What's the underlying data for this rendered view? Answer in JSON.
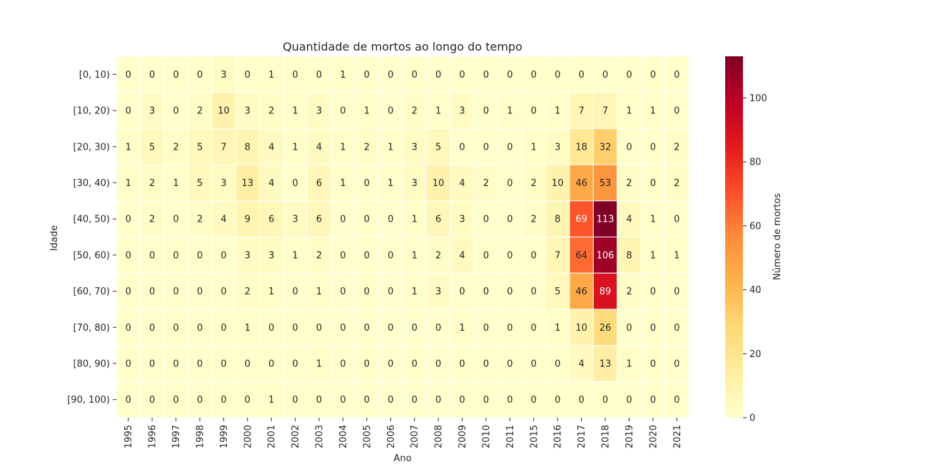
{
  "chart_data": {
    "type": "heatmap",
    "title": "Quantidade de mortos ao longo do tempo",
    "xlabel": "Ano",
    "ylabel": "Idade",
    "x": [
      "1995",
      "1996",
      "1997",
      "1998",
      "1999",
      "2000",
      "2001",
      "2002",
      "2003",
      "2004",
      "2005",
      "2006",
      "2007",
      "2008",
      "2009",
      "2010",
      "2011",
      "2015",
      "2016",
      "2017",
      "2018",
      "2019",
      "2020",
      "2021"
    ],
    "y": [
      "[0, 10)",
      "[10, 20)",
      "[20, 30)",
      "[30, 40)",
      "[40, 50)",
      "[50, 60)",
      "[60, 70)",
      "[70, 80)",
      "[80, 90)",
      "[90, 100)"
    ],
    "values": [
      [
        0,
        0,
        0,
        0,
        3,
        0,
        1,
        0,
        0,
        1,
        0,
        0,
        0,
        0,
        0,
        0,
        0,
        0,
        0,
        0,
        0,
        0,
        0,
        0
      ],
      [
        0,
        3,
        0,
        2,
        10,
        3,
        2,
        1,
        3,
        0,
        1,
        0,
        2,
        1,
        3,
        0,
        1,
        0,
        1,
        7,
        7,
        1,
        1,
        0
      ],
      [
        1,
        5,
        2,
        5,
        7,
        8,
        4,
        1,
        4,
        1,
        2,
        1,
        3,
        5,
        0,
        0,
        0,
        1,
        3,
        18,
        32,
        0,
        0,
        2
      ],
      [
        1,
        2,
        1,
        5,
        3,
        13,
        4,
        0,
        6,
        1,
        0,
        1,
        3,
        10,
        4,
        2,
        0,
        2,
        10,
        46,
        53,
        2,
        0,
        2
      ],
      [
        0,
        2,
        0,
        2,
        4,
        9,
        6,
        3,
        6,
        0,
        0,
        0,
        1,
        6,
        3,
        0,
        0,
        2,
        8,
        69,
        113,
        4,
        1,
        0
      ],
      [
        0,
        0,
        0,
        0,
        0,
        3,
        3,
        1,
        2,
        0,
        0,
        0,
        1,
        2,
        4,
        0,
        0,
        0,
        7,
        64,
        106,
        8,
        1,
        1
      ],
      [
        0,
        0,
        0,
        0,
        0,
        2,
        1,
        0,
        1,
        0,
        0,
        0,
        1,
        3,
        0,
        0,
        0,
        0,
        5,
        46,
        89,
        2,
        0,
        0
      ],
      [
        0,
        0,
        0,
        0,
        0,
        1,
        0,
        0,
        0,
        0,
        0,
        0,
        0,
        0,
        1,
        0,
        0,
        0,
        1,
        10,
        26,
        0,
        0,
        0
      ],
      [
        0,
        0,
        0,
        0,
        0,
        0,
        0,
        0,
        1,
        0,
        0,
        0,
        0,
        0,
        0,
        0,
        0,
        0,
        0,
        4,
        13,
        1,
        0,
        0
      ],
      [
        0,
        0,
        0,
        0,
        0,
        0,
        1,
        0,
        0,
        0,
        0,
        0,
        0,
        0,
        0,
        0,
        0,
        0,
        0,
        0,
        0,
        0,
        0,
        0
      ]
    ],
    "colorbar": {
      "label": "Número de mortos",
      "range": [
        0,
        113
      ],
      "ticks": [
        0,
        20,
        40,
        60,
        80,
        100
      ],
      "colormap": "YlOrRd"
    },
    "grid": false,
    "legend": "colorbar-right"
  }
}
